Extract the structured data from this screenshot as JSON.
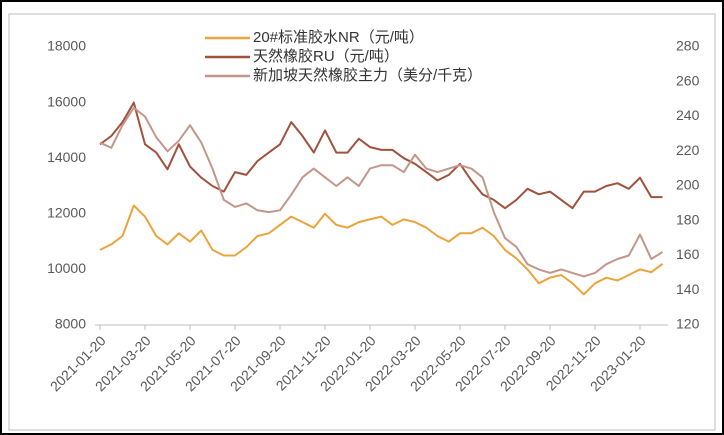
{
  "chart_data": {
    "type": "line",
    "categories": [
      "2021-01-20",
      null,
      null,
      null,
      "2021-03-20",
      null,
      null,
      null,
      "2021-05-20",
      null,
      null,
      null,
      "2021-07-20",
      null,
      null,
      null,
      "2021-09-20",
      null,
      null,
      null,
      "2021-11-20",
      null,
      null,
      null,
      "2022-01-20",
      null,
      null,
      null,
      "2022-03-20",
      null,
      null,
      null,
      "2022-05-20",
      null,
      null,
      null,
      "2022-07-20",
      null,
      null,
      null,
      "2022-09-20",
      null,
      null,
      null,
      "2022-11-20",
      null,
      null,
      null,
      "2023-01-20",
      null,
      null
    ],
    "series": [
      {
        "name": "20#标准胶水NR（元/吨）",
        "color": "#eba43c",
        "values": [
          10700,
          10900,
          11200,
          12300,
          11900,
          11200,
          10900,
          11300,
          11000,
          11400,
          10700,
          10500,
          10500,
          10800,
          11200,
          11300,
          11600,
          11900,
          11700,
          11500,
          12000,
          11600,
          11500,
          11700,
          11800,
          11900,
          11600,
          11800,
          11700,
          11500,
          11200,
          11000,
          11300,
          11300,
          11500,
          11200,
          10700,
          10400,
          10000,
          9500,
          9700,
          9800,
          9500,
          9100,
          9500,
          9700,
          9600,
          9800,
          10000,
          9900,
          10200
        ]
      },
      {
        "name": "天然橡胶RU（元/吨）",
        "color": "#a0523c",
        "values": [
          14500,
          14800,
          15300,
          16000,
          14500,
          14200,
          13600,
          14500,
          13700,
          13300,
          13000,
          12800,
          13500,
          13400,
          13900,
          14200,
          14500,
          15300,
          14800,
          14200,
          15000,
          14200,
          14200,
          14700,
          14400,
          14300,
          14300,
          14000,
          13800,
          13500,
          13200,
          13400,
          13800,
          13200,
          12700,
          12500,
          12200,
          12500,
          12900,
          12700,
          12800,
          12500,
          12200,
          12800,
          12800,
          13000,
          13100,
          12900,
          13300,
          12600,
          12600
        ]
      },
      {
        "name": "新加坡天然橡胶主力（美分/千克）",
        "color": "#c4968a",
        "axis": "y2",
        "values": [
          225,
          222,
          235,
          245,
          240,
          228,
          220,
          226,
          235,
          225,
          210,
          192,
          188,
          190,
          186,
          185,
          186,
          195,
          205,
          210,
          205,
          200,
          205,
          200,
          210,
          212,
          212,
          208,
          218,
          210,
          208,
          210,
          212,
          210,
          205,
          185,
          170,
          165,
          155,
          152,
          150,
          152,
          150,
          148,
          150,
          155,
          158,
          160,
          172,
          158,
          162
        ]
      }
    ],
    "ylim": [
      8000,
      18000
    ],
    "yticks": [
      8000,
      10000,
      12000,
      14000,
      16000,
      18000
    ],
    "y2lim": [
      120,
      280
    ],
    "y2ticks": [
      120,
      140,
      160,
      180,
      200,
      220,
      240,
      260,
      280
    ],
    "grid": false
  }
}
